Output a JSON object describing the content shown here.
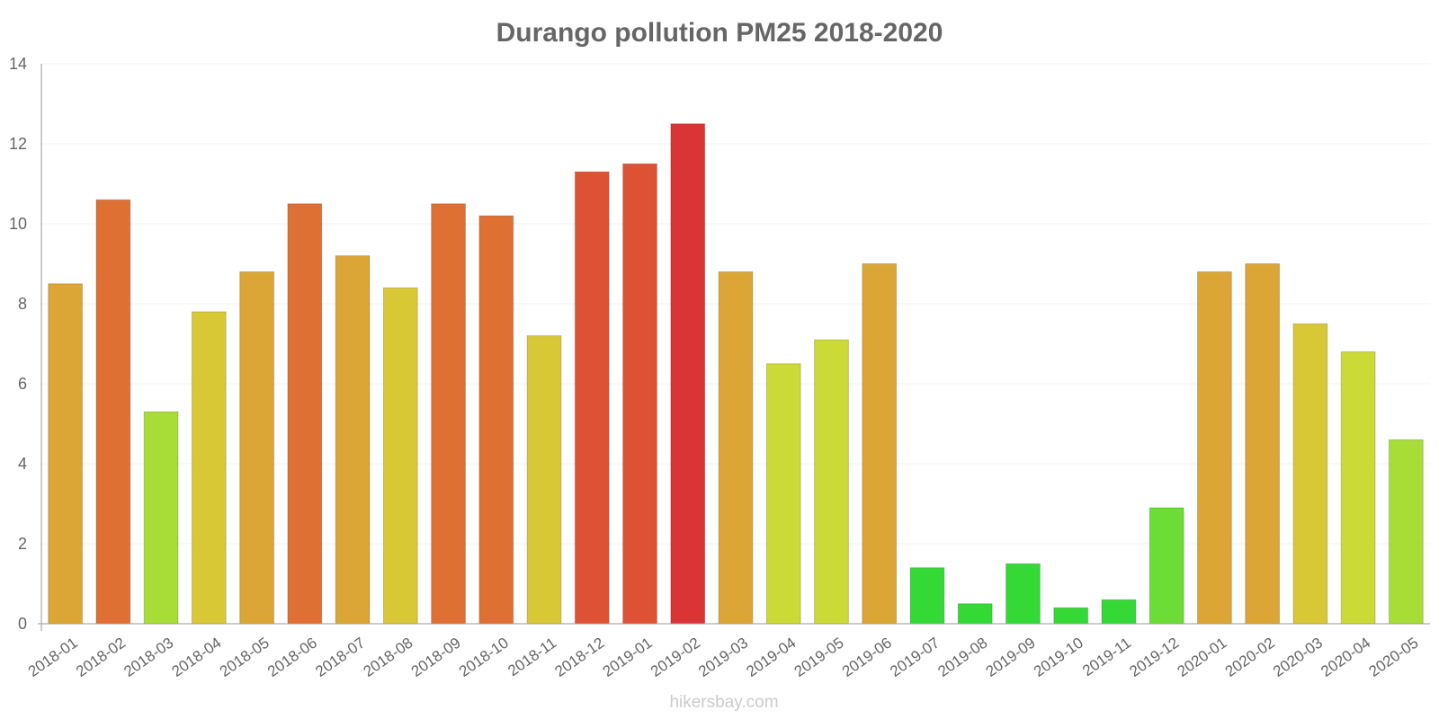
{
  "chart_data": {
    "type": "bar",
    "title": "Durango pollution PM25 2018-2020",
    "xlabel": "",
    "ylabel": "",
    "ylim": [
      0,
      14
    ],
    "yticks": [
      "0",
      "2",
      "4",
      "6",
      "8",
      "10",
      "12",
      "14"
    ],
    "categories": [
      "2018-01",
      "2018-02",
      "2018-03",
      "2018-04",
      "2018-05",
      "2018-06",
      "2018-07",
      "2018-08",
      "2018-09",
      "2018-10",
      "2018-11",
      "2018-12",
      "2019-01",
      "2019-02",
      "2019-03",
      "2019-04",
      "2019-05",
      "2019-06",
      "2019-07",
      "2019-08",
      "2019-09",
      "2019-10",
      "2019-11",
      "2019-12",
      "2020-01",
      "2020-02",
      "2020-03",
      "2020-04",
      "2020-05"
    ],
    "values": [
      8.5,
      10.6,
      5.3,
      7.8,
      8.8,
      10.5,
      9.2,
      8.4,
      10.5,
      10.2,
      7.2,
      11.3,
      11.5,
      12.5,
      8.8,
      6.5,
      7.1,
      9.0,
      1.4,
      0.5,
      1.5,
      0.4,
      0.6,
      2.9,
      8.8,
      9.0,
      7.5,
      6.8,
      4.6
    ],
    "colors": [
      "#dba636",
      "#de7034",
      "#a8dc36",
      "#d9c836",
      "#dba636",
      "#de7034",
      "#dba636",
      "#d9c836",
      "#de7034",
      "#de7034",
      "#d9c836",
      "#dd5234",
      "#dd5234",
      "#d93436",
      "#dba636",
      "#cbda36",
      "#cbda36",
      "#dba636",
      "#34d936",
      "#34d936",
      "#34d936",
      "#34d936",
      "#34d936",
      "#6bdd36",
      "#dba636",
      "#dba636",
      "#d9c836",
      "#cbda36",
      "#a8dc36"
    ],
    "grid": true,
    "legend": "none"
  },
  "footer": {
    "credit": "hikersbay.com"
  }
}
